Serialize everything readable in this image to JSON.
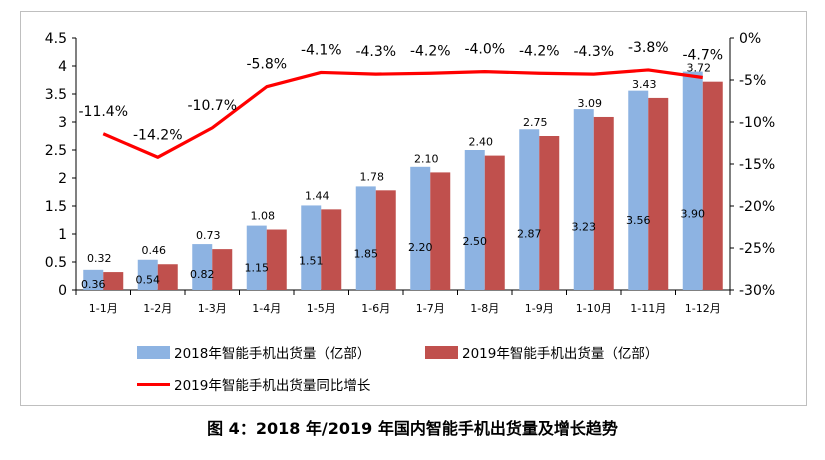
{
  "chart_data": {
    "type": "bar",
    "categories": [
      "1-1月",
      "1-2月",
      "1-3月",
      "1-4月",
      "1-5月",
      "1-6月",
      "1-7月",
      "1-8月",
      "1-9月",
      "1-10月",
      "1-11月",
      "1-12月"
    ],
    "series": [
      {
        "name": "2018年智能手机出货量（亿部）",
        "values": [
          0.36,
          0.54,
          0.82,
          1.15,
          1.51,
          1.85,
          2.2,
          2.5,
          2.87,
          3.23,
          3.56,
          3.9
        ],
        "color": "#8db3e2",
        "axis": "left"
      },
      {
        "name": "2019年智能手机出货量（亿部）",
        "values": [
          0.32,
          0.46,
          0.73,
          1.08,
          1.44,
          1.78,
          2.1,
          2.4,
          2.75,
          3.09,
          3.43,
          3.72
        ],
        "color": "#c0504d",
        "axis": "left"
      },
      {
        "name": "2019年智能手机出货量同比增长",
        "type": "line",
        "values": [
          -11.4,
          -14.2,
          -10.7,
          -5.8,
          -4.1,
          -4.3,
          -4.2,
          -4.0,
          -4.2,
          -4.3,
          -3.8,
          -4.7
        ],
        "color": "#ff0000",
        "axis": "right"
      }
    ],
    "y_left": {
      "min": 0,
      "max": 4.5,
      "ticks": [
        "0",
        "0.5",
        "1",
        "1.5",
        "2",
        "2.5",
        "3",
        "3.5",
        "4",
        "4.5"
      ]
    },
    "y_right": {
      "min": -30,
      "max": 0,
      "ticks": [
        "-30%",
        "-25%",
        "-20%",
        "-15%",
        "-10%",
        "-5%",
        "0%"
      ]
    },
    "bar_labels_2018": [
      "0.36",
      "0.54",
      "0.82",
      "1.15",
      "1.51",
      "1.85",
      "2.20",
      "2.50",
      "2.87",
      "3.23",
      "3.56",
      "3.90"
    ],
    "bar_labels_2019": [
      "0.32",
      "0.46",
      "0.73",
      "1.08",
      "1.44",
      "1.78",
      "2.10",
      "2.40",
      "2.75",
      "3.09",
      "3.43",
      "3.72"
    ],
    "line_labels": [
      "-11.4%",
      "-14.2%",
      "-10.7%",
      "-5.8%",
      "-4.1%",
      "-4.3%",
      "-4.2%",
      "-4.0%",
      "-4.2%",
      "-4.3%",
      "-3.8%",
      "-4.7%"
    ],
    "grid": false,
    "legend_position": "bottom"
  },
  "legend": {
    "item_2018": "2018年智能手机出货量（亿部）",
    "item_2019": "2019年智能手机出货量（亿部）",
    "item_growth": "2019年智能手机出货量同比增长"
  },
  "caption": "图 4：2018 年/2019 年国内智能手机出货量及增长趋势"
}
